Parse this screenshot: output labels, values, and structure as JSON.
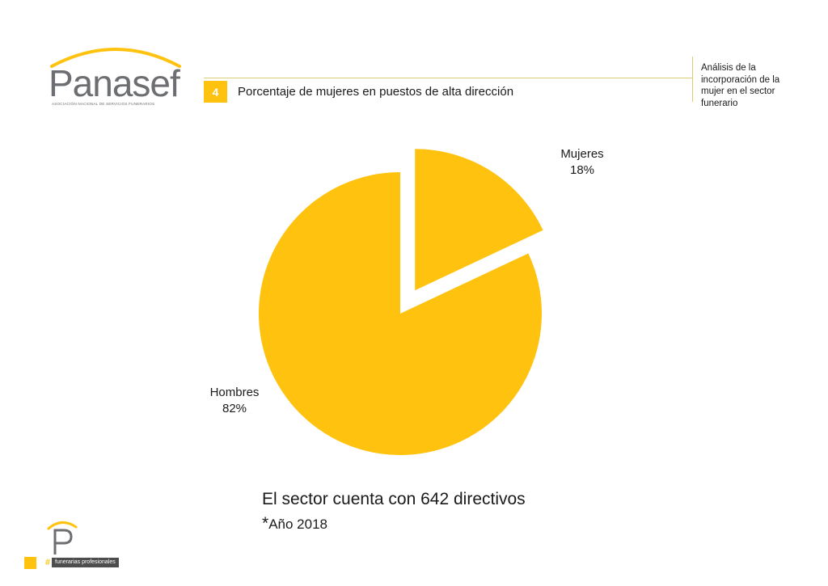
{
  "header": {
    "logo_text": "Panasef",
    "logo_tagline": "ASOCIACIÓN NACIONAL DE SERVICIOS FUNERARIOS",
    "section_number": "4",
    "section_title": "Porcentaje de mujeres en puestos de alta dirección",
    "side_note": "Análisis de la incorporación de la mujer en el sector funerario"
  },
  "chart_data": {
    "type": "pie",
    "title": "",
    "slices": [
      {
        "label": "Mujeres",
        "value": 18,
        "value_label": "18%",
        "exploded": true
      },
      {
        "label": "Hombres",
        "value": 82,
        "value_label": "82%",
        "exploded": false
      }
    ],
    "start": "12 o'clock, clockwise",
    "legend": "none (data labels beside slices)"
  },
  "summary": {
    "text": "El sector cuenta con 642 directivos",
    "star": "*",
    "year": "Año 2018"
  },
  "footer": {
    "logo_letter": "P",
    "hash": "#",
    "tag": "funerarias profesionales"
  },
  "colors": {
    "accent": "#ffc20e",
    "logo_gray": "#6d6e71",
    "rule": "#d9cf72"
  }
}
